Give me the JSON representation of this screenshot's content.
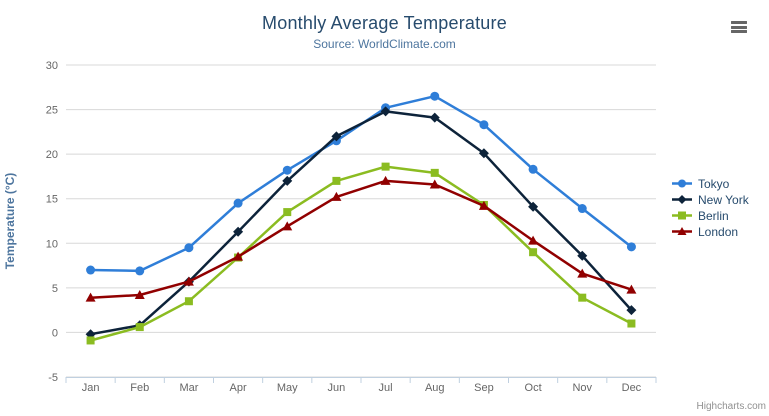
{
  "title": "Monthly Average Temperature",
  "subtitle": "Source: WorldClimate.com",
  "credit": "Highcharts.com",
  "colors": {
    "title": "#274b6d",
    "subtitle": "#4d759e",
    "axis_label": "#666666",
    "axis_title": "#4d759e",
    "gridline": "#d8d8d8",
    "axis_line": "#c0d0e0",
    "legend_text": "#274b6d",
    "credit": "#909090",
    "menu_icon": "#666666"
  },
  "chart_data": {
    "type": "line",
    "title": "Monthly Average Temperature",
    "subtitle": "Source: WorldClimate.com",
    "xlabel": "",
    "ylabel": "Temperature (°C)",
    "ylim": [
      -5,
      30
    ],
    "yticks": [
      -5,
      0,
      5,
      10,
      15,
      20,
      25,
      30
    ],
    "grid": true,
    "legend_position": "right-middle",
    "categories": [
      "Jan",
      "Feb",
      "Mar",
      "Apr",
      "May",
      "Jun",
      "Jul",
      "Aug",
      "Sep",
      "Oct",
      "Nov",
      "Dec"
    ],
    "series": [
      {
        "name": "Tokyo",
        "color": "#2f7ed8",
        "marker": "circle",
        "values": [
          7.0,
          6.9,
          9.5,
          14.5,
          18.2,
          21.5,
          25.2,
          26.5,
          23.3,
          18.3,
          13.9,
          9.6
        ]
      },
      {
        "name": "New York",
        "color": "#0d233a",
        "marker": "diamond",
        "values": [
          -0.2,
          0.8,
          5.7,
          11.3,
          17.0,
          22.0,
          24.8,
          24.1,
          20.1,
          14.1,
          8.6,
          2.5
        ]
      },
      {
        "name": "Berlin",
        "color": "#8bbc21",
        "marker": "square",
        "values": [
          -0.9,
          0.6,
          3.5,
          8.4,
          13.5,
          17.0,
          18.6,
          17.9,
          14.3,
          9.0,
          3.9,
          1.0
        ]
      },
      {
        "name": "London",
        "color": "#910000",
        "marker": "triangle",
        "values": [
          3.9,
          4.2,
          5.7,
          8.5,
          11.9,
          15.2,
          17.0,
          16.6,
          14.2,
          10.3,
          6.6,
          4.8
        ]
      }
    ]
  }
}
